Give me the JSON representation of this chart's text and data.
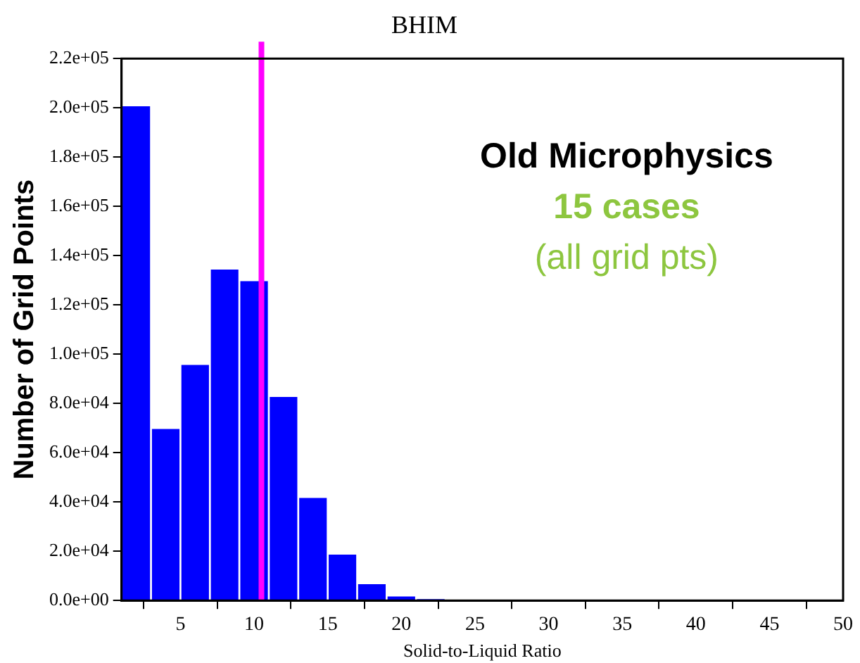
{
  "chart_data": {
    "type": "histogram",
    "title": "BHIM",
    "xlabel": "Solid-to-Liquid Ratio",
    "ylabel": "Number of Grid Points",
    "bins": [
      1,
      3,
      5,
      7,
      9,
      11,
      13,
      15,
      17,
      19,
      21,
      23
    ],
    "values": [
      201000,
      70000,
      96000,
      134700,
      130000,
      83000,
      42000,
      19000,
      7000,
      2000,
      500
    ],
    "color": "#0000ff",
    "xlim": [
      1,
      50
    ],
    "xticks": [
      5,
      10,
      15,
      20,
      25,
      30,
      35,
      40,
      45,
      50
    ],
    "ylim": [
      0,
      220000
    ],
    "yticks": [
      {
        "value": 0,
        "label": "0.0e+00"
      },
      {
        "value": 20000,
        "label": "2.0e+04"
      },
      {
        "value": 40000,
        "label": "4.0e+04"
      },
      {
        "value": 60000,
        "label": "6.0e+04"
      },
      {
        "value": 80000,
        "label": "8.0e+04"
      },
      {
        "value": 100000,
        "label": "1.0e+05"
      },
      {
        "value": 120000,
        "label": "1.2e+05"
      },
      {
        "value": 140000,
        "label": "1.4e+05"
      },
      {
        "value": 160000,
        "label": "1.6e+05"
      },
      {
        "value": 180000,
        "label": "1.8e+05"
      },
      {
        "value": 200000,
        "label": "2.0e+05"
      },
      {
        "value": 220000,
        "label": "2.2e+05"
      }
    ],
    "ref_lines": [
      {
        "axis": "x",
        "value": 10.5,
        "color": "#ff00ff"
      }
    ],
    "annotations": [
      "Old Microphysics",
      "15 cases",
      "(all grid pts)"
    ],
    "grid": false,
    "legend": false
  }
}
